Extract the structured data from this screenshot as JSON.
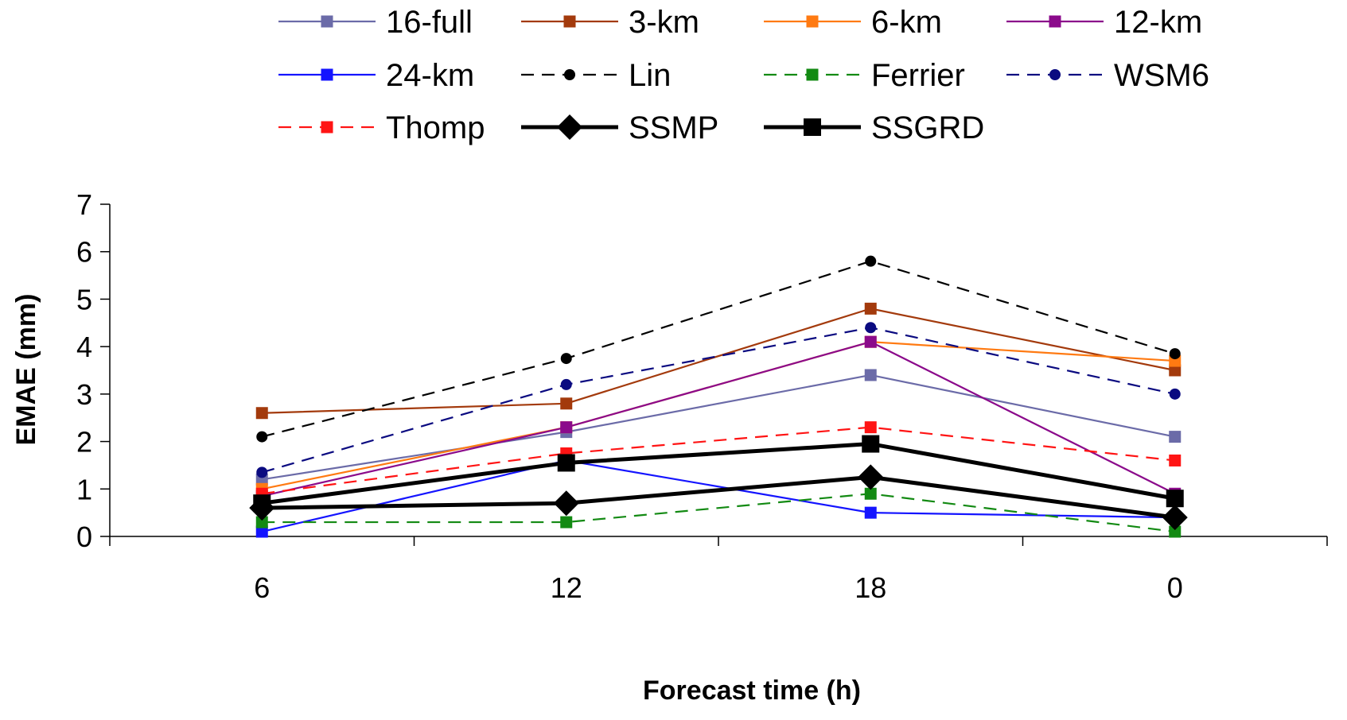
{
  "chart_data": {
    "type": "line",
    "title": "",
    "xlabel": "Forecast time (h)",
    "ylabel": "EMAE (mm)",
    "categories": [
      "6",
      "12",
      "18",
      "0"
    ],
    "ylim": [
      0,
      7
    ],
    "yticks": [
      "0",
      "1",
      "2",
      "3",
      "4",
      "5",
      "6",
      "7"
    ],
    "legend_position": "top",
    "series": [
      {
        "name": "16-full",
        "color": "#6b6ba8",
        "dash": "solid",
        "marker": "square",
        "width": "thin",
        "values": [
          1.2,
          2.2,
          3.4,
          2.1
        ]
      },
      {
        "name": "3-km",
        "color": "#a33a0c",
        "dash": "solid",
        "marker": "square",
        "width": "thin",
        "values": [
          2.6,
          2.8,
          4.8,
          3.5
        ]
      },
      {
        "name": "6-km",
        "color": "#ff7a12",
        "dash": "solid",
        "marker": "square",
        "width": "thin",
        "values": [
          1.0,
          2.3,
          4.1,
          3.7
        ]
      },
      {
        "name": "12-km",
        "color": "#8b0a8b",
        "dash": "solid",
        "marker": "square",
        "width": "thin",
        "values": [
          0.85,
          2.3,
          4.1,
          0.9
        ]
      },
      {
        "name": "24-km",
        "color": "#1414ff",
        "dash": "solid",
        "marker": "square",
        "width": "thin",
        "values": [
          0.1,
          1.6,
          0.5,
          0.4
        ]
      },
      {
        "name": "Lin",
        "color": "#000000",
        "dash": "dashed",
        "marker": "circle",
        "width": "thin",
        "values": [
          2.1,
          3.75,
          5.8,
          3.85
        ]
      },
      {
        "name": "Ferrier",
        "color": "#138a13",
        "dash": "dashed",
        "marker": "square",
        "width": "thin",
        "values": [
          0.3,
          0.3,
          0.9,
          0.1
        ]
      },
      {
        "name": "WSM6",
        "color": "#0a0a80",
        "dash": "dashed",
        "marker": "circle",
        "width": "thin",
        "values": [
          1.35,
          3.2,
          4.4,
          3.0
        ]
      },
      {
        "name": "Thomp",
        "color": "#ff1414",
        "dash": "dashed",
        "marker": "square",
        "width": "thin",
        "values": [
          0.9,
          1.75,
          2.3,
          1.6
        ]
      },
      {
        "name": "SSMP",
        "color": "#000000",
        "dash": "solid",
        "marker": "diamond",
        "width": "thick",
        "values": [
          0.6,
          0.7,
          1.25,
          0.4
        ]
      },
      {
        "name": "SSGRD",
        "color": "#000000",
        "dash": "solid",
        "marker": "square",
        "width": "thick",
        "values": [
          0.7,
          1.55,
          1.95,
          0.8
        ]
      }
    ]
  }
}
